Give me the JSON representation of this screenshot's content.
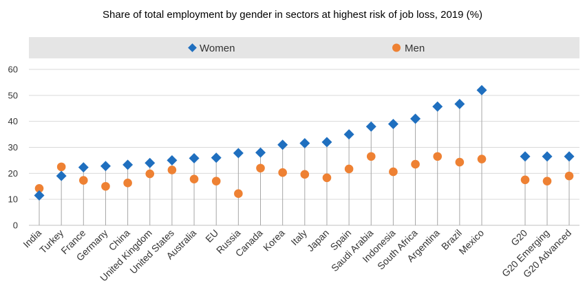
{
  "chart_data": {
    "type": "scatter",
    "title": "Share of total employment by gender in sectors at highest risk of job loss, 2019 (%)",
    "ylim": [
      0,
      60
    ],
    "yticks": [
      0,
      10,
      20,
      30,
      40,
      50,
      60
    ],
    "grid": true,
    "legend_position": "top",
    "categories": [
      "India",
      "Turkey",
      "France",
      "Germany",
      "China",
      "United Kingdom",
      "United States",
      "Australia",
      "EU",
      "Russia",
      "Canada",
      "Korea",
      "Italy",
      "Japan",
      "Spain",
      "Saudi Arabia",
      "Indonesia",
      "South Africa",
      "Argentina",
      "Brazil",
      "Mexico",
      "G20",
      "G20 Emerging",
      "G20 Advanced"
    ],
    "series": [
      {
        "name": "Women",
        "color": "#1f6fbf",
        "marker": "diamond",
        "values": [
          11.5,
          19,
          22.3,
          22.8,
          23.3,
          24,
          25,
          25.8,
          26,
          27.8,
          28,
          31,
          31.6,
          32,
          35,
          38,
          39,
          41,
          45.7,
          46.7,
          52,
          26.5,
          26.5,
          26.5
        ]
      },
      {
        "name": "Men",
        "color": "#ee8133",
        "marker": "circle",
        "values": [
          14.2,
          22.5,
          17.3,
          15,
          16.3,
          19.8,
          21.3,
          17.8,
          17,
          12.2,
          22,
          20.3,
          19.6,
          18.3,
          21.7,
          26.5,
          20.6,
          23.5,
          26.5,
          24.3,
          25.5,
          17.5,
          17,
          19
        ]
      }
    ]
  }
}
